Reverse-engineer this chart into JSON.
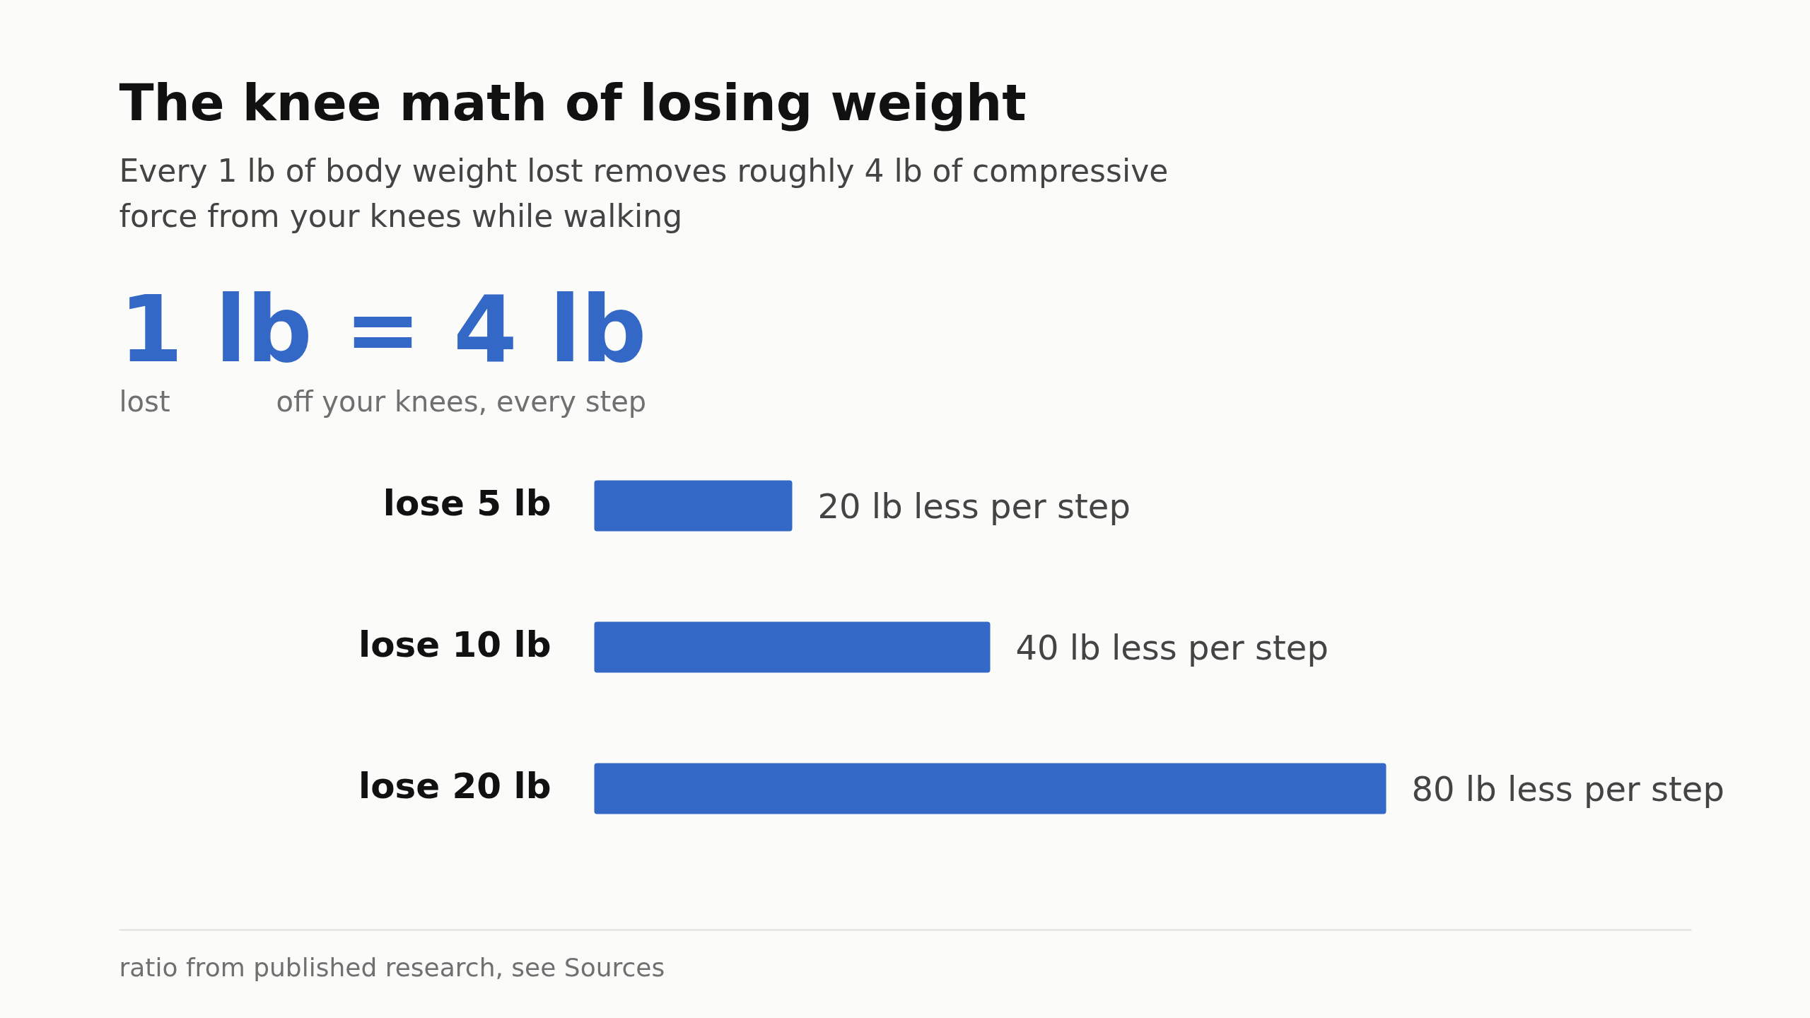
{
  "chart_data": {
    "type": "bar",
    "orientation": "horizontal",
    "title": "The knee math of losing weight",
    "subtitle": "Every 1 lb of body weight lost removes roughly 4 lb of compressive force from your knees while walking",
    "categories": [
      "lose 5 lb",
      "lose 10 lb",
      "lose 20 lb"
    ],
    "values": [
      20,
      40,
      80
    ],
    "color": "#3468c6",
    "value_labels": [
      "20 lb less per step",
      "40 lb less per step",
      "80 lb less per step"
    ],
    "annotations": [
      "1 lb = 4 lb",
      "lost",
      "off your knees, every step",
      "ratio from published research, see Sources"
    ],
    "grid": false
  }
}
